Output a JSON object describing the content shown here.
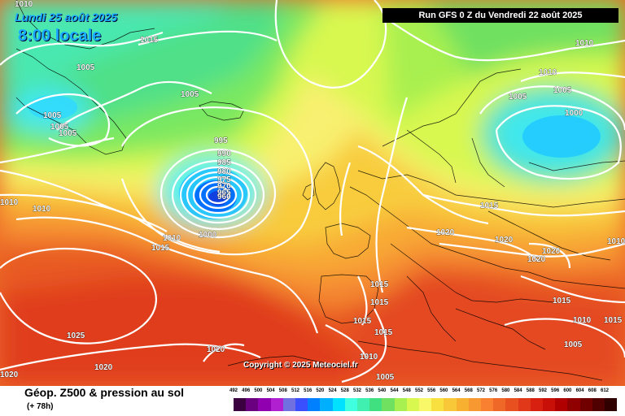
{
  "header": {
    "valid_date": "Lundi 25 août 2025",
    "valid_time": "8:00 locale",
    "run": "Run GFS 0 Z du Vendredi 22 août 2025"
  },
  "footer": {
    "parameter": "Géop. Z500 & pression au sol",
    "lead_time": "(+ 78h)",
    "copyright": "Copyright © 2025 Meteociel.fr"
  },
  "isobar_labels": [
    "1010",
    "1015",
    "1005",
    "1005",
    "1005",
    "1005",
    "1005",
    "995",
    "990",
    "985",
    "980",
    "975",
    "970",
    "965",
    "960",
    "1010",
    "1010",
    "1010",
    "1015",
    "1000",
    "1015",
    "1020",
    "1020",
    "1020",
    "1020",
    "1015",
    "1015",
    "1015",
    "1015",
    "1025",
    "1020",
    "1020",
    "1010",
    "1005",
    "1020",
    "1010",
    "1010",
    "1005",
    "1005",
    "1000",
    "1010",
    "1015",
    "1010",
    "1005",
    "1015"
  ],
  "legend": {
    "values": [
      "492",
      "496",
      "500",
      "504",
      "508",
      "512",
      "516",
      "520",
      "524",
      "528",
      "532",
      "536",
      "540",
      "544",
      "548",
      "552",
      "556",
      "560",
      "564",
      "568",
      "572",
      "576",
      "580",
      "584",
      "588",
      "592",
      "596",
      "600",
      "604",
      "608",
      "612"
    ],
    "colors": [
      "#3a0040",
      "#6a0080",
      "#9000b0",
      "#b020d0",
      "#7070e0",
      "#3a50ff",
      "#0080ff",
      "#00b0ff",
      "#00e0ff",
      "#40ffe0",
      "#40f0b0",
      "#40e080",
      "#70e060",
      "#a8f050",
      "#d8f850",
      "#f8f868",
      "#f8e040",
      "#f8c838",
      "#f8b030",
      "#f89830",
      "#f88030",
      "#f06828",
      "#e85020",
      "#e03818",
      "#d82010",
      "#c81008",
      "#b00000",
      "#900000",
      "#700000",
      "#500000",
      "#300000"
    ]
  }
}
